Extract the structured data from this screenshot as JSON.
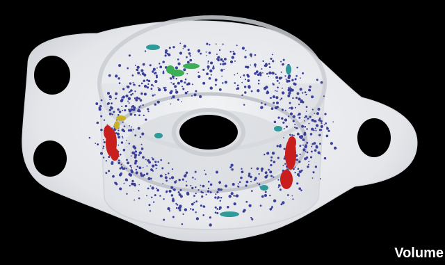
{
  "caption": "Volume",
  "colors": {
    "background": "#000000",
    "part": "#e9ebee",
    "part_shadow": "#c9ccd2",
    "holes": "#000000",
    "particles": "#3b3f9a",
    "particles_cluster_teal": "#2f9a9a",
    "particles_cluster_green": "#3cae55",
    "particles_cluster_yellow": "#c8b02a",
    "particles_cluster_red": "#c81e1e"
  }
}
